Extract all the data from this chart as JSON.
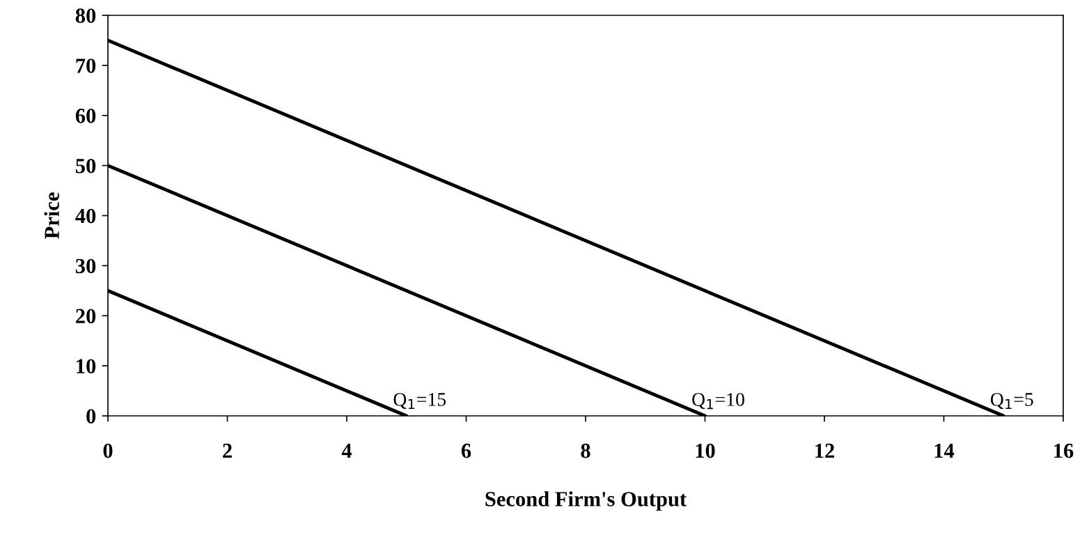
{
  "chart_data": {
    "type": "line",
    "xlabel": "Second Firm's Output",
    "ylabel": "Price",
    "series": [
      {
        "color": "#000000",
        "x": [
          0,
          5
        ],
        "values": [
          25,
          0
        ]
      },
      {
        "color": "#000000",
        "x": [
          0,
          10
        ],
        "values": [
          50,
          0
        ]
      },
      {
        "color": "#000000",
        "x": [
          0,
          15
        ],
        "values": [
          75,
          0
        ]
      }
    ],
    "annotations": [
      {
        "text": "Q$_{1}$=15",
        "x": 5,
        "y": 0
      },
      {
        "text": "Q$_{1}$=10",
        "x": 10,
        "y": 0
      },
      {
        "text": "Q$_{1}$=5",
        "x": 15,
        "y": 0
      }
    ],
    "xlim": [
      0,
      16
    ],
    "xticks": [
      0,
      2,
      4,
      6,
      8,
      10,
      12,
      14,
      16
    ],
    "ylim": [
      0,
      80
    ],
    "yticks": [
      0,
      10,
      20,
      30,
      40,
      50,
      60,
      70,
      80
    ],
    "grid": false,
    "marker": "none",
    "line_style": "solid"
  }
}
